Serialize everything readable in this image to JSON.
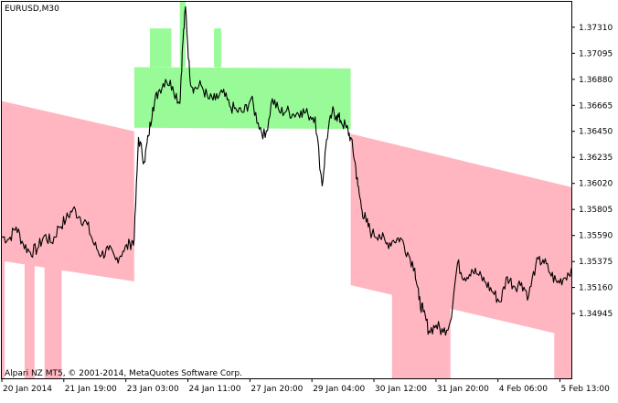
{
  "window": {
    "title": "EURUSD,M30",
    "copyright": "Alpari NZ MT5, © 2001-2014, MetaQuotes Software Corp."
  },
  "colors": {
    "background": "#ffffff",
    "frame": "#000000",
    "price_line": "#000000",
    "upper_channel_fill": "#98fb98",
    "lower_channel_fill": "#ffb6c1"
  },
  "chart_data": {
    "type": "line",
    "symbol": "EURUSD",
    "timeframe": "M30",
    "ylim": [
      1.3441,
      1.3752
    ],
    "y_ticks": [
      "1.37310",
      "1.37095",
      "1.36880",
      "1.36665",
      "1.36450",
      "1.36235",
      "1.36020",
      "1.35805",
      "1.35590",
      "1.35375",
      "1.35160",
      "1.34945"
    ],
    "x_ticks": [
      "20 Jan 2014",
      "21 Jan 19:00",
      "23 Jan 03:00",
      "24 Jan 11:00",
      "27 Jan 20:00",
      "29 Jan 04:00",
      "30 Jan 12:00",
      "31 Jan 20:00",
      "4 Feb 06:00",
      "5 Feb 13:00"
    ],
    "x_range_bars": [
      0,
      400
    ],
    "grid": false,
    "price_series": {
      "name": "EURUSD,M30",
      "points": [
        [
          0,
          1.3558
        ],
        [
          5,
          1.3556
        ],
        [
          10,
          1.3566
        ],
        [
          15,
          1.3552
        ],
        [
          20,
          1.3545
        ],
        [
          25,
          1.3548
        ],
        [
          30,
          1.3559
        ],
        [
          35,
          1.3553
        ],
        [
          40,
          1.3566
        ],
        [
          45,
          1.3572
        ],
        [
          50,
          1.3581
        ],
        [
          55,
          1.3574
        ],
        [
          60,
          1.3568
        ],
        [
          65,
          1.3551
        ],
        [
          70,
          1.3543
        ],
        [
          75,
          1.3547
        ],
        [
          80,
          1.3539
        ],
        [
          85,
          1.3546
        ],
        [
          90,
          1.3552
        ],
        [
          93,
          1.3556
        ],
        [
          96,
          1.364
        ],
        [
          100,
          1.362
        ],
        [
          103,
          1.3641
        ],
        [
          106,
          1.3665
        ],
        [
          110,
          1.3678
        ],
        [
          115,
          1.3688
        ],
        [
          120,
          1.3682
        ],
        [
          125,
          1.3668
        ],
        [
          127,
          1.3716
        ],
        [
          129,
          1.3748
        ],
        [
          132,
          1.369
        ],
        [
          135,
          1.368
        ],
        [
          140,
          1.3683
        ],
        [
          145,
          1.3672
        ],
        [
          150,
          1.3671
        ],
        [
          155,
          1.3677
        ],
        [
          160,
          1.3666
        ],
        [
          165,
          1.3662
        ],
        [
          170,
          1.3661
        ],
        [
          175,
          1.3672
        ],
        [
          180,
          1.3652
        ],
        [
          185,
          1.364
        ],
        [
          190,
          1.3672
        ],
        [
          195,
          1.3661
        ],
        [
          200,
          1.3662
        ],
        [
          205,
          1.3659
        ],
        [
          210,
          1.3662
        ],
        [
          215,
          1.3659
        ],
        [
          220,
          1.3657
        ],
        [
          225,
          1.36
        ],
        [
          228,
          1.3638
        ],
        [
          232,
          1.3661
        ],
        [
          235,
          1.3658
        ],
        [
          238,
          1.3654
        ],
        [
          242,
          1.3648
        ],
        [
          245,
          1.364
        ],
        [
          248,
          1.362
        ],
        [
          250,
          1.36
        ],
        [
          253,
          1.358
        ],
        [
          256,
          1.357
        ],
        [
          260,
          1.356
        ],
        [
          265,
          1.356
        ],
        [
          270,
          1.3552
        ],
        [
          275,
          1.3555
        ],
        [
          280,
          1.3557
        ],
        [
          285,
          1.3545
        ],
        [
          290,
          1.3532
        ],
        [
          293,
          1.3506
        ],
        [
          296,
          1.3496
        ],
        [
          300,
          1.348
        ],
        [
          305,
          1.3485
        ],
        [
          310,
          1.3479
        ],
        [
          315,
          1.3488
        ],
        [
          320,
          1.3536
        ],
        [
          325,
          1.3524
        ],
        [
          330,
          1.3531
        ],
        [
          335,
          1.3526
        ],
        [
          340,
          1.352
        ],
        [
          345,
          1.3512
        ],
        [
          350,
          1.3504
        ],
        [
          355,
          1.3525
        ],
        [
          360,
          1.3517
        ],
        [
          365,
          1.352
        ],
        [
          370,
          1.3509
        ],
        [
          375,
          1.3535
        ],
        [
          380,
          1.3539
        ],
        [
          385,
          1.3528
        ],
        [
          390,
          1.352
        ],
        [
          395,
          1.3524
        ],
        [
          400,
          1.3532
        ]
      ]
    },
    "channel_bands": [
      {
        "name": "lower",
        "color": "#ffb6c1",
        "x_start": 0,
        "x_end": 93,
        "top_start": 1.367,
        "top_end": 1.3645,
        "bottom_start": 1.3538,
        "bottom_end": 1.3521
      },
      {
        "name": "lower",
        "color": "#ffb6c1",
        "x_start": 245,
        "x_end": 400,
        "top_start": 1.3643,
        "top_end": 1.3599,
        "bottom_start": 1.3518,
        "bottom_end": 1.3475
      },
      {
        "name": "upper",
        "color": "#98fb98",
        "x_start": 93,
        "x_end": 245,
        "top_start": 1.3698,
        "top_end": 1.3697,
        "bottom_start": 1.3648,
        "bottom_end": 1.3647
      }
    ],
    "channel_spikes": [
      {
        "color": "#98fb98",
        "x_start": 104,
        "x_end": 119,
        "top": 1.373,
        "bottom": 1.3698
      },
      {
        "color": "#98fb98",
        "x_start": 125,
        "x_end": 129,
        "top": 1.3752,
        "bottom": 1.3698
      },
      {
        "color": "#98fb98",
        "x_start": 149,
        "x_end": 154,
        "top": 1.373,
        "bottom": 1.3698
      },
      {
        "color": "#ffb6c1",
        "x_start": 0,
        "x_end": 2,
        "top": 1.3538,
        "bottom": 1.3441
      },
      {
        "color": "#ffb6c1",
        "x_start": 16,
        "x_end": 23,
        "top": 1.3538,
        "bottom": 1.3441
      },
      {
        "color": "#ffb6c1",
        "x_start": 30,
        "x_end": 42,
        "top": 1.3538,
        "bottom": 1.3441
      },
      {
        "color": "#ffb6c1",
        "x_start": 274,
        "x_end": 315,
        "top": 1.3518,
        "bottom": 1.3441
      },
      {
        "color": "#ffb6c1",
        "x_start": 388,
        "x_end": 400,
        "top": 1.3518,
        "bottom": 1.3441
      }
    ]
  }
}
